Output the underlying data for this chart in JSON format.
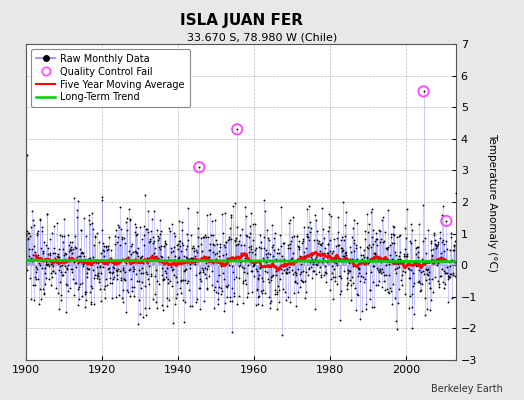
{
  "title": "ISLA JUAN FER",
  "subtitle": "33.670 S, 78.980 W (Chile)",
  "ylabel": "Temperature Anomaly (°C)",
  "attribution": "Berkeley Earth",
  "xlim": [
    1900,
    2013
  ],
  "ylim": [
    -3,
    7
  ],
  "yticks": [
    -3,
    -2,
    -1,
    0,
    1,
    2,
    3,
    4,
    5,
    6,
    7
  ],
  "xticks": [
    1900,
    1920,
    1940,
    1960,
    1980,
    2000
  ],
  "raw_color": "#4444ff",
  "raw_line_color": "#8888ff",
  "dot_color": "#000000",
  "ma_color": "#ff0000",
  "trend_color": "#00cc00",
  "qc_color": "#ff44ff",
  "bg_color": "#e8e8e8",
  "plot_bg": "#ffffff",
  "seed": 137,
  "start_year": 1900.0,
  "end_year": 2012.917,
  "n_months": 1356,
  "qc_times": [
    1945.5,
    1955.5,
    2004.5,
    2010.5
  ],
  "qc_vals": [
    3.1,
    4.3,
    5.5,
    1.4
  ]
}
